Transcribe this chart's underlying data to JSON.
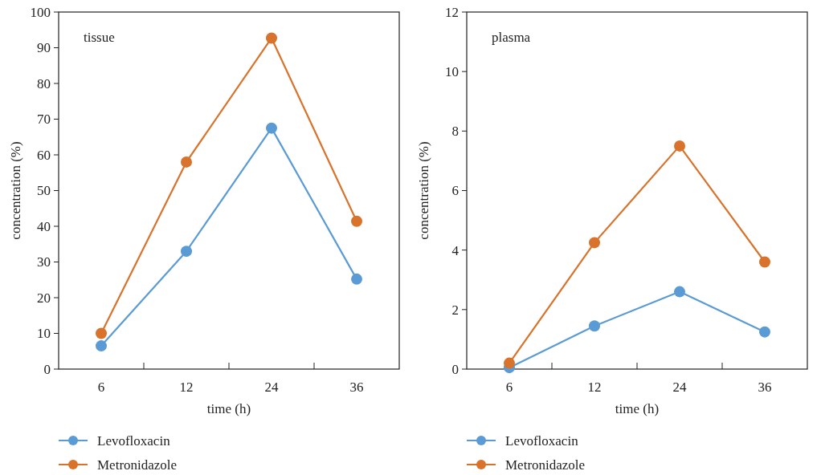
{
  "chart_data": [
    {
      "type": "line",
      "xlabel": "time (h)",
      "ylabel": "concentration (%)",
      "annotations": [
        "tissue"
      ],
      "categories": [
        "6",
        "12",
        "24",
        "36"
      ],
      "ylim": [
        0,
        100
      ],
      "yticks": [
        0,
        10,
        20,
        30,
        40,
        50,
        60,
        70,
        80,
        90,
        100
      ],
      "marker": "circle",
      "legend": "bottom",
      "series": [
        {
          "name": "Levofloxacin",
          "color": "#5b9bd5",
          "values": [
            6.5,
            33,
            67.5,
            25.2
          ]
        },
        {
          "name": "Metronidazole",
          "color": "#d9722a",
          "values": [
            10,
            58,
            92.7,
            41.4
          ]
        }
      ]
    },
    {
      "type": "line",
      "xlabel": "time (h)",
      "ylabel": "concentration (%)",
      "annotations": [
        "plasma"
      ],
      "categories": [
        "6",
        "12",
        "24",
        "36"
      ],
      "ylim": [
        0,
        12
      ],
      "yticks": [
        0,
        2,
        4,
        6,
        8,
        10,
        12
      ],
      "marker": "circle",
      "legend": "bottom",
      "series": [
        {
          "name": "Levofloxacin",
          "color": "#5b9bd5",
          "values": [
            0.05,
            1.45,
            2.6,
            1.25
          ]
        },
        {
          "name": "Metronidazole",
          "color": "#d9722a",
          "values": [
            0.2,
            4.25,
            7.5,
            3.6
          ]
        }
      ]
    }
  ]
}
